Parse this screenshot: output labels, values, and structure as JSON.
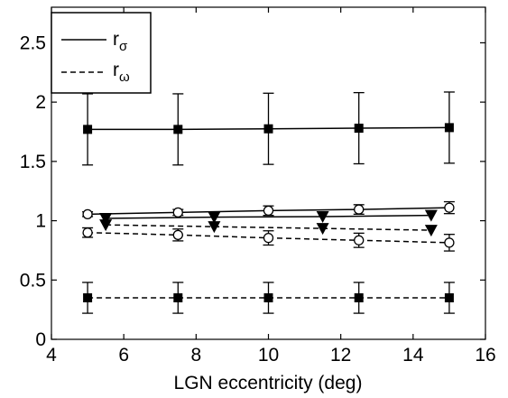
{
  "chart_data": {
    "type": "line",
    "title": "",
    "xlabel": "LGN eccentricity (deg)",
    "ylabel": "",
    "xlim": [
      4,
      16
    ],
    "ylim": [
      0,
      2.8
    ],
    "xticks": [
      "4",
      "6",
      "8",
      "10",
      "12",
      "14",
      "16"
    ],
    "xtick_values": [
      4,
      6,
      8,
      10,
      12,
      14,
      16
    ],
    "yticks": [
      "0",
      "0.5",
      "1",
      "1.5",
      "2",
      "2.5"
    ],
    "ytick_values": [
      0,
      0.5,
      1,
      1.5,
      2,
      2.5
    ],
    "grid": false,
    "legend": {
      "placement": "top-left",
      "entries": [
        {
          "label_base": "r",
          "label_sub": "σ",
          "line": "solid"
        },
        {
          "label_base": "r",
          "label_sub": "ω",
          "line": "dashed"
        }
      ]
    },
    "series": [
      {
        "line": "solid",
        "marker": "square",
        "x": [
          5,
          7.5,
          10,
          12.5,
          15
        ],
        "y": [
          1.77,
          1.77,
          1.775,
          1.78,
          1.785
        ],
        "err": [
          0.3,
          0.3,
          0.3,
          0.3,
          0.3
        ]
      },
      {
        "line": "dashed",
        "marker": "square",
        "x": [
          5,
          7.5,
          10,
          12.5,
          15
        ],
        "y": [
          0.35,
          0.35,
          0.35,
          0.35,
          0.35
        ],
        "err": [
          0.13,
          0.13,
          0.13,
          0.13,
          0.13
        ]
      },
      {
        "line": "solid",
        "marker": "circle",
        "x": [
          5,
          7.5,
          10,
          12.5,
          15
        ],
        "y": [
          1.055,
          1.07,
          1.085,
          1.095,
          1.11
        ],
        "err": [
          0.02,
          0.025,
          0.04,
          0.04,
          0.05
        ]
      },
      {
        "line": "dashed",
        "marker": "circle",
        "x": [
          5,
          7.5,
          10,
          12.5,
          15
        ],
        "y": [
          0.9,
          0.88,
          0.855,
          0.835,
          0.815
        ],
        "err": [
          0.04,
          0.05,
          0.06,
          0.06,
          0.07
        ]
      },
      {
        "line": "solid",
        "marker": "triangle-down",
        "x": [
          5.5,
          8.5,
          11.5,
          14.5
        ],
        "y": [
          1.02,
          1.03,
          1.035,
          1.045
        ],
        "err": [
          0,
          0,
          0,
          0
        ]
      },
      {
        "line": "dashed",
        "marker": "triangle-down",
        "x": [
          5.5,
          8.5,
          11.5,
          14.5
        ],
        "y": [
          0.965,
          0.95,
          0.935,
          0.92
        ],
        "err": [
          0,
          0,
          0,
          0
        ]
      }
    ]
  }
}
